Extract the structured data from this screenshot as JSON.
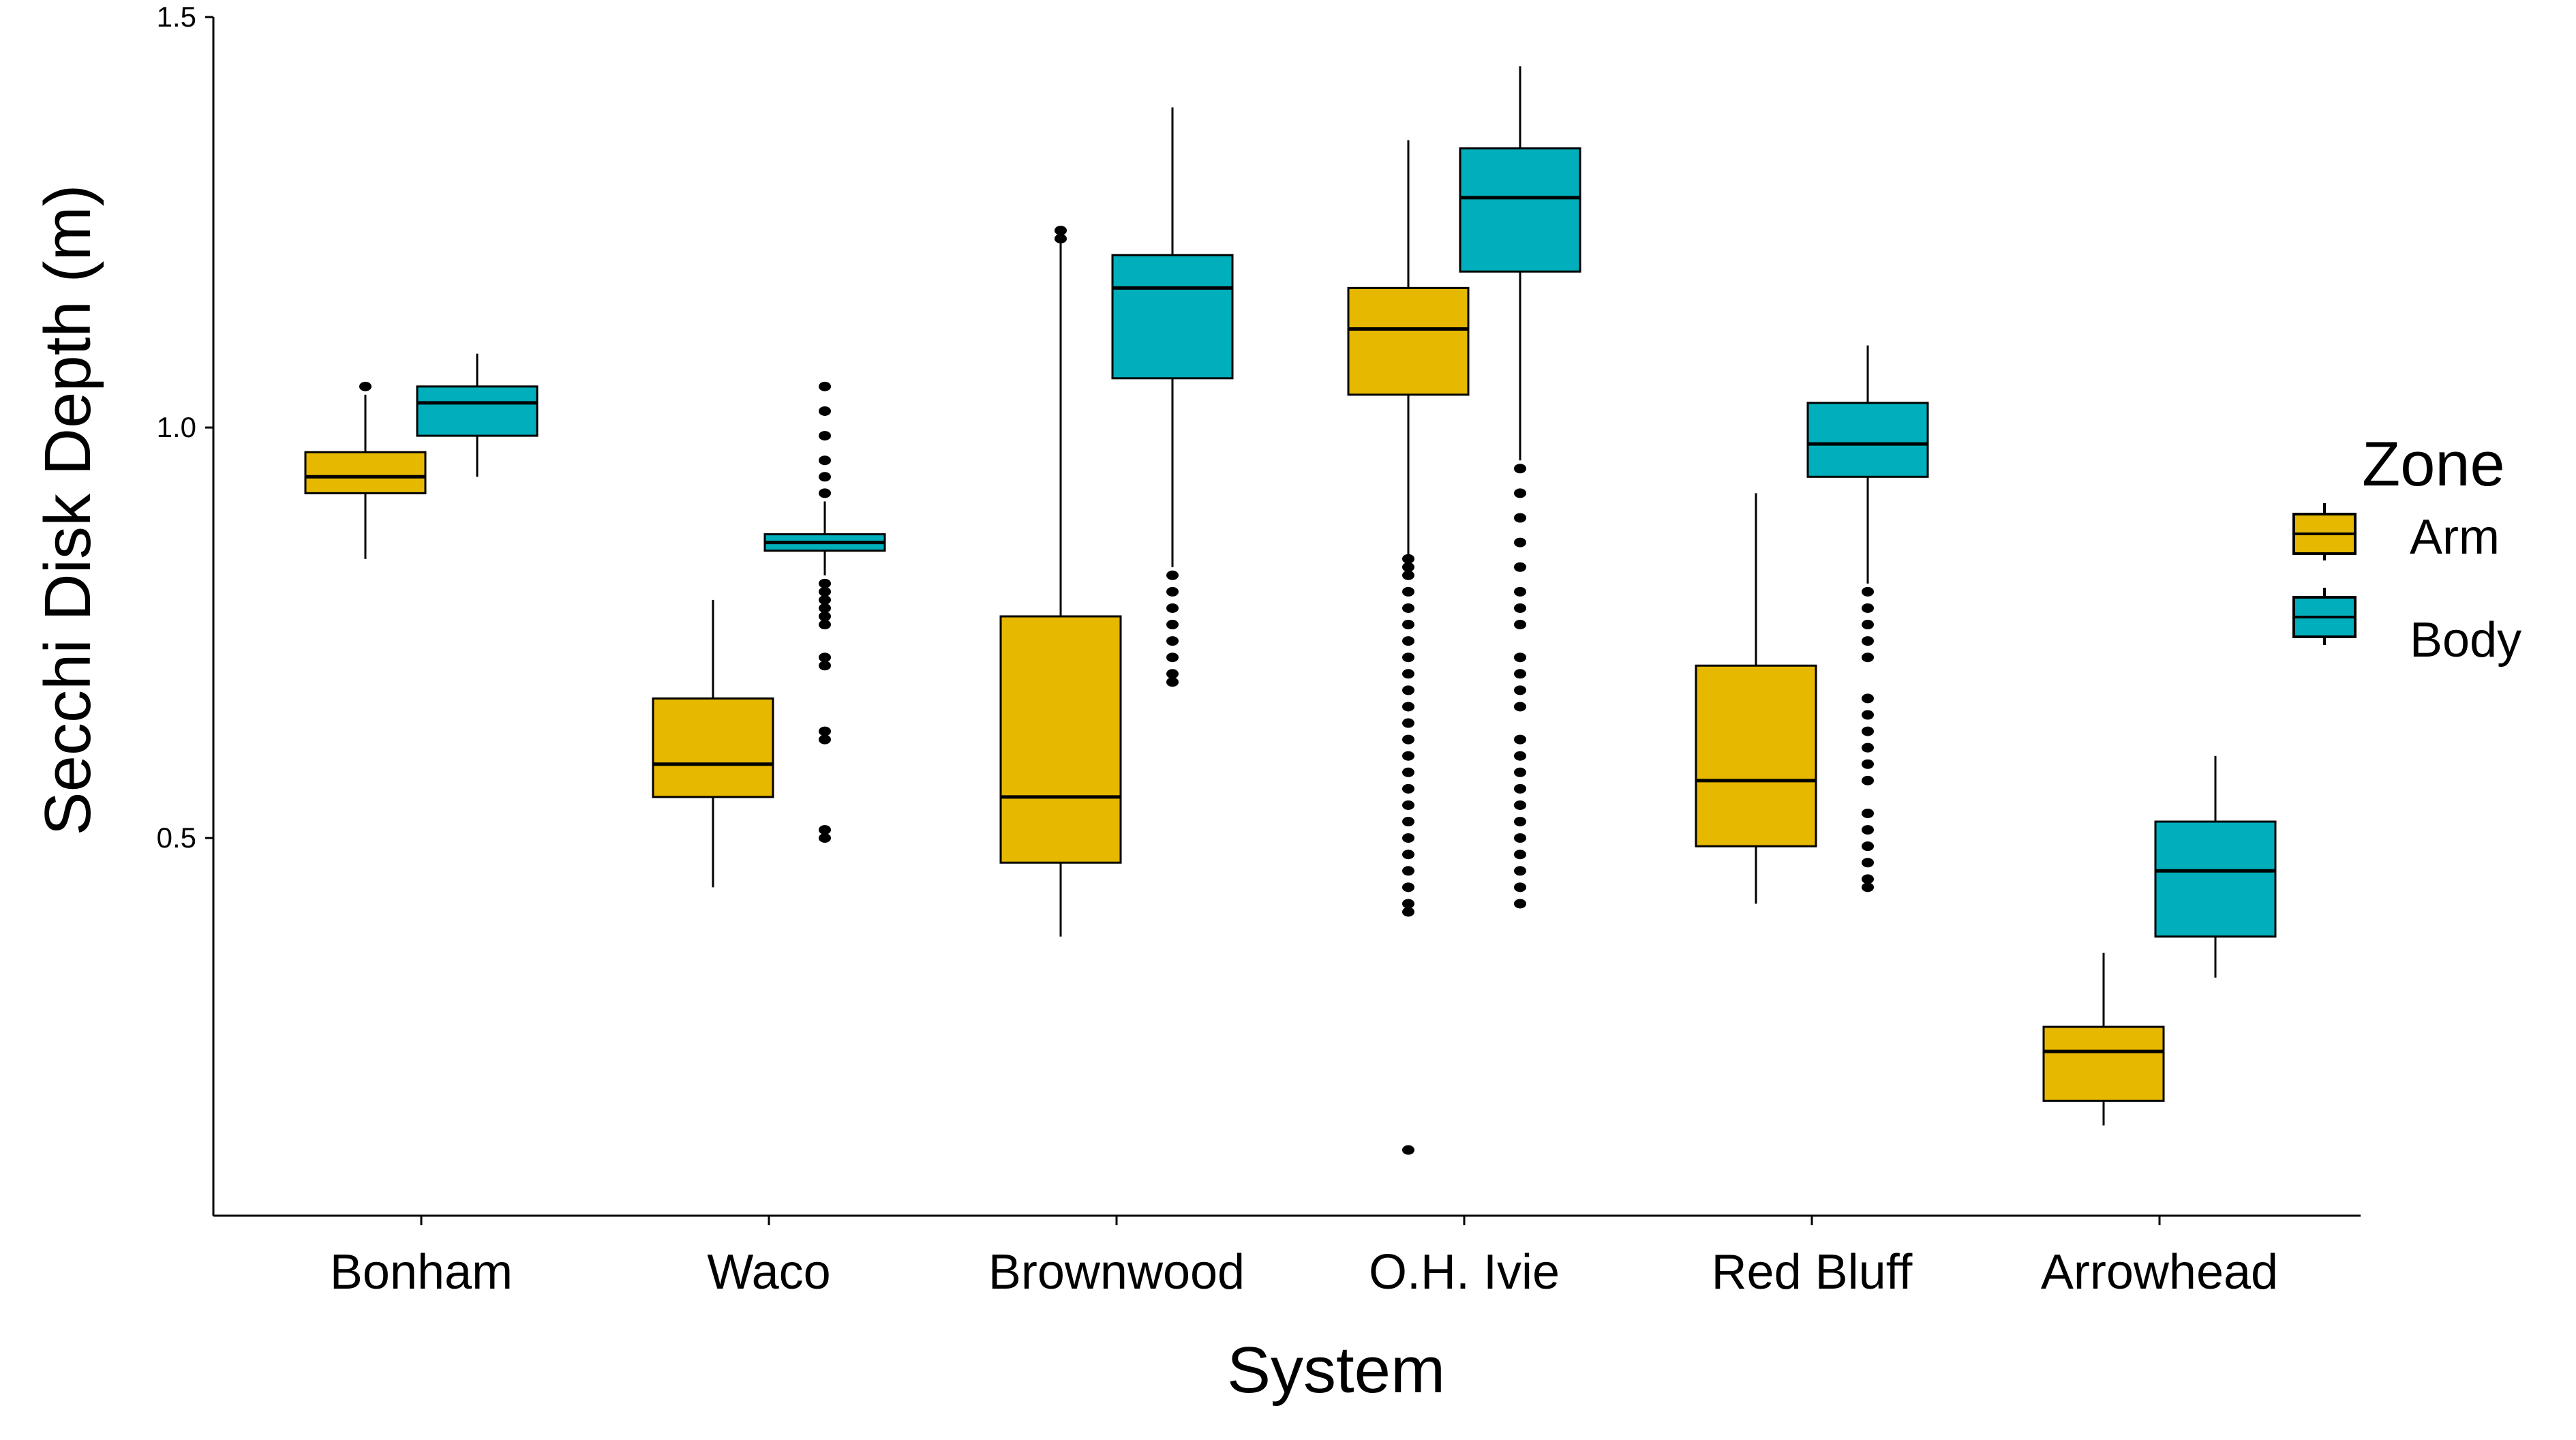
{
  "chart_data": {
    "type": "box",
    "title": "",
    "xlabel": "System",
    "ylabel": "Secchi Disk Depth (m)",
    "ylim": [
      0.04,
      1.5
    ],
    "yticks": [
      0.5,
      1.0,
      1.5
    ],
    "ytick_labels": [
      "0.5",
      "1.0",
      "1.5"
    ],
    "categories": [
      "Bonham",
      "Waco",
      "Brownwood",
      "O.H. Ivie",
      "Red Bluff",
      "Arrowhead"
    ],
    "legend": {
      "title": "Zone",
      "position": "right",
      "entries": [
        {
          "name": "Arm",
          "color": "#E6B800"
        },
        {
          "name": "Body",
          "color": "#00AFBB"
        }
      ]
    },
    "grid": false,
    "series": [
      {
        "name": "Arm",
        "color": "#E6B800",
        "boxes": [
          {
            "category": "Bonham",
            "whisker_low": 0.84,
            "q1": 0.92,
            "median": 0.94,
            "q3": 0.97,
            "whisker_high": 1.04,
            "outliers": [
              1.05
            ]
          },
          {
            "category": "Waco",
            "whisker_low": 0.44,
            "q1": 0.55,
            "median": 0.59,
            "q3": 0.67,
            "whisker_high": 0.79,
            "outliers": []
          },
          {
            "category": "Brownwood",
            "whisker_low": 0.38,
            "q1": 0.47,
            "median": 0.55,
            "q3": 0.77,
            "whisker_high": 1.23,
            "outliers": [
              1.23,
              1.24
            ]
          },
          {
            "category": "O.H. Ivie",
            "whisker_low": 0.84,
            "q1": 1.04,
            "median": 1.12,
            "q3": 1.17,
            "whisker_high": 1.35,
            "outliers": [
              0.84,
              0.83,
              0.82,
              0.8,
              0.78,
              0.76,
              0.74,
              0.72,
              0.7,
              0.68,
              0.66,
              0.64,
              0.62,
              0.6,
              0.58,
              0.56,
              0.54,
              0.52,
              0.5,
              0.48,
              0.46,
              0.44,
              0.42,
              0.41,
              0.12
            ]
          },
          {
            "category": "Red Bluff",
            "whisker_low": 0.42,
            "q1": 0.49,
            "median": 0.57,
            "q3": 0.71,
            "whisker_high": 0.92,
            "outliers": []
          },
          {
            "category": "Arrowhead",
            "whisker_low": 0.15,
            "q1": 0.18,
            "median": 0.24,
            "q3": 0.27,
            "whisker_high": 0.36,
            "outliers": []
          }
        ]
      },
      {
        "name": "Body",
        "color": "#00AFBB",
        "boxes": [
          {
            "category": "Bonham",
            "whisker_low": 0.94,
            "q1": 0.99,
            "median": 1.03,
            "q3": 1.05,
            "whisker_high": 1.09,
            "outliers": []
          },
          {
            "category": "Waco",
            "whisker_low": 0.82,
            "q1": 0.85,
            "median": 0.86,
            "q3": 0.87,
            "whisker_high": 0.91,
            "outliers": [
              1.05,
              1.02,
              0.99,
              0.96,
              0.94,
              0.92,
              0.81,
              0.8,
              0.79,
              0.78,
              0.77,
              0.76,
              0.72,
              0.71,
              0.63,
              0.62,
              0.51,
              0.5
            ]
          },
          {
            "category": "Brownwood",
            "whisker_low": 0.83,
            "q1": 1.06,
            "median": 1.17,
            "q3": 1.21,
            "whisker_high": 1.39,
            "outliers": [
              0.82,
              0.8,
              0.78,
              0.76,
              0.74,
              0.72,
              0.7,
              0.69
            ]
          },
          {
            "category": "O.H. Ivie",
            "whisker_low": 0.96,
            "q1": 1.19,
            "median": 1.28,
            "q3": 1.34,
            "whisker_high": 1.44,
            "outliers": [
              0.95,
              0.92,
              0.89,
              0.86,
              0.83,
              0.8,
              0.78,
              0.76,
              0.72,
              0.7,
              0.68,
              0.66,
              0.62,
              0.6,
              0.58,
              0.56,
              0.54,
              0.52,
              0.5,
              0.48,
              0.46,
              0.44,
              0.42
            ]
          },
          {
            "category": "Red Bluff",
            "whisker_low": 0.81,
            "q1": 0.94,
            "median": 0.98,
            "q3": 1.03,
            "whisker_high": 1.1,
            "outliers": [
              0.8,
              0.78,
              0.76,
              0.74,
              0.72,
              0.67,
              0.65,
              0.63,
              0.61,
              0.59,
              0.57,
              0.53,
              0.51,
              0.49,
              0.47,
              0.45,
              0.44
            ]
          },
          {
            "category": "Arrowhead",
            "whisker_low": 0.33,
            "q1": 0.38,
            "median": 0.46,
            "q3": 0.52,
            "whisker_high": 0.6,
            "outliers": []
          }
        ]
      }
    ]
  }
}
